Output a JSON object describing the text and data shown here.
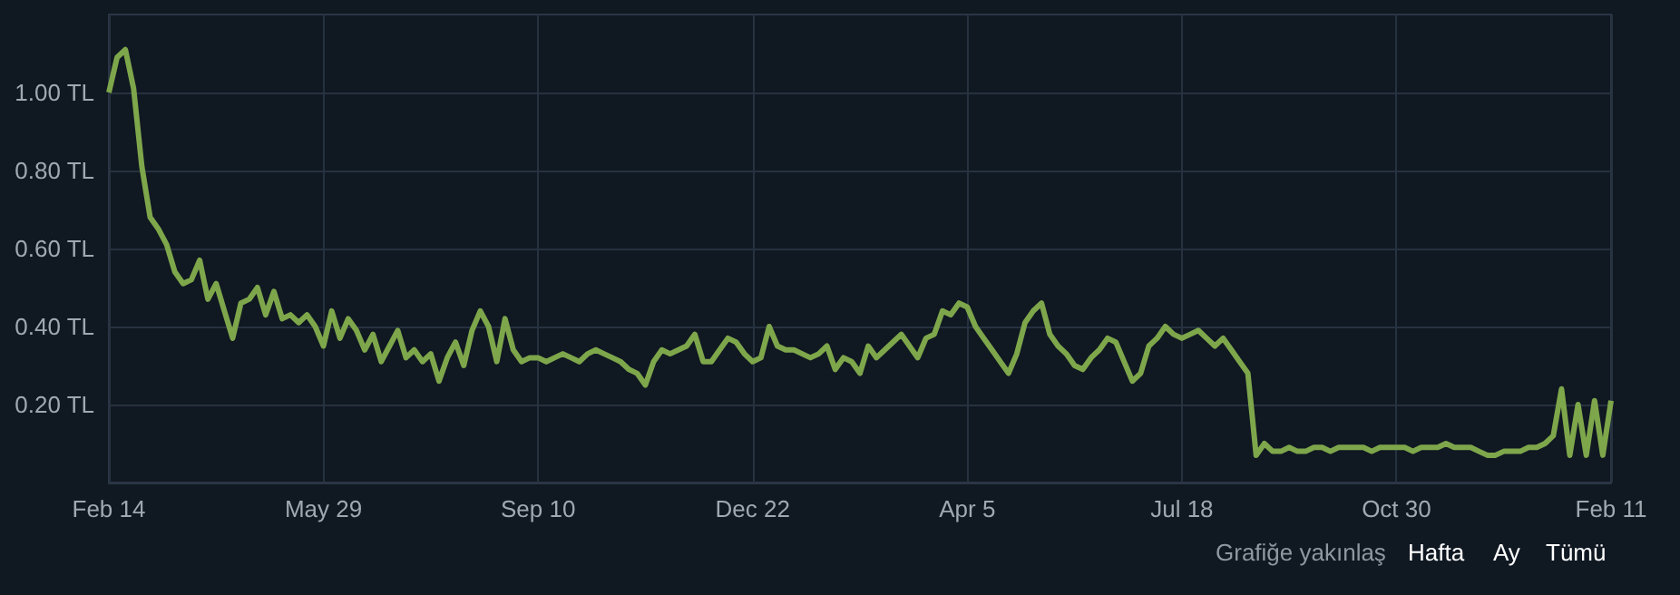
{
  "chart_data": {
    "type": "line",
    "categories": [
      "Feb 14",
      null,
      null,
      null,
      null,
      null,
      null,
      null,
      null,
      null,
      null,
      null,
      null,
      null,
      null,
      null,
      null,
      null,
      null,
      null,
      null,
      null,
      null,
      null,
      null,
      null,
      "May 29",
      null,
      null,
      null,
      null,
      null,
      null,
      null,
      null,
      null,
      null,
      null,
      null,
      null,
      null,
      null,
      null,
      null,
      null,
      null,
      null,
      null,
      null,
      null,
      null,
      null,
      "Sep 10",
      null,
      null,
      null,
      null,
      null,
      null,
      null,
      null,
      null,
      null,
      null,
      null,
      null,
      null,
      null,
      null,
      null,
      null,
      null,
      null,
      null,
      null,
      null,
      null,
      null,
      "Dec 22",
      null,
      null,
      null,
      null,
      null,
      null,
      null,
      null,
      null,
      null,
      null,
      null,
      null,
      null,
      null,
      null,
      null,
      null,
      null,
      null,
      null,
      null,
      null,
      null,
      null,
      "Apr 5",
      null,
      null,
      null,
      null,
      null,
      null,
      null,
      null,
      null,
      null,
      null,
      null,
      null,
      null,
      null,
      null,
      null,
      null,
      null,
      null,
      null,
      null,
      null,
      null,
      null,
      "Jul 18",
      null,
      null,
      null,
      null,
      null,
      null,
      null,
      null,
      null,
      null,
      null,
      null,
      null,
      null,
      null,
      null,
      null,
      null,
      null,
      null,
      null,
      null,
      null,
      null,
      null,
      "Oct 30",
      null,
      null,
      null,
      null,
      null,
      null,
      null,
      null,
      null,
      null,
      null,
      null,
      null,
      null,
      null,
      null,
      null,
      null,
      null,
      null,
      null,
      null,
      null,
      null,
      null,
      "Feb 11"
    ],
    "series": [
      {
        "color": "#7ea64b",
        "values": [
          1.0,
          1.09,
          1.11,
          1.01,
          0.81,
          0.68,
          0.65,
          0.61,
          0.54,
          0.51,
          0.52,
          0.57,
          0.47,
          0.51,
          0.44,
          0.37,
          0.46,
          0.47,
          0.5,
          0.43,
          0.49,
          0.42,
          0.43,
          0.41,
          0.43,
          0.4,
          0.35,
          0.44,
          0.37,
          0.42,
          0.39,
          0.34,
          0.38,
          0.31,
          0.35,
          0.39,
          0.32,
          0.34,
          0.31,
          0.33,
          0.26,
          0.32,
          0.36,
          0.3,
          0.39,
          0.44,
          0.4,
          0.31,
          0.42,
          0.34,
          0.31,
          0.32,
          0.32,
          0.31,
          0.32,
          0.33,
          0.32,
          0.31,
          0.33,
          0.34,
          0.33,
          0.32,
          0.31,
          0.29,
          0.28,
          0.25,
          0.31,
          0.34,
          0.33,
          0.34,
          0.35,
          0.38,
          0.31,
          0.31,
          0.34,
          0.37,
          0.36,
          0.33,
          0.31,
          0.32,
          0.4,
          0.35,
          0.34,
          0.34,
          0.33,
          0.32,
          0.33,
          0.35,
          0.29,
          0.32,
          0.31,
          0.28,
          0.35,
          0.32,
          0.34,
          0.36,
          0.38,
          0.35,
          0.32,
          0.37,
          0.38,
          0.44,
          0.43,
          0.46,
          0.45,
          0.4,
          0.37,
          0.34,
          0.31,
          0.28,
          0.33,
          0.41,
          0.44,
          0.46,
          0.38,
          0.35,
          0.33,
          0.3,
          0.29,
          0.32,
          0.34,
          0.37,
          0.36,
          0.31,
          0.26,
          0.28,
          0.35,
          0.37,
          0.4,
          0.38,
          0.37,
          0.38,
          0.39,
          0.37,
          0.35,
          0.37,
          0.34,
          0.31,
          0.28,
          0.07,
          0.1,
          0.08,
          0.08,
          0.09,
          0.08,
          0.08,
          0.09,
          0.09,
          0.08,
          0.09,
          0.09,
          0.09,
          0.09,
          0.08,
          0.09,
          0.09,
          0.09,
          0.09,
          0.08,
          0.09,
          0.09,
          0.09,
          0.1,
          0.09,
          0.09,
          0.09,
          0.08,
          0.07,
          0.07,
          0.08,
          0.08,
          0.08,
          0.09,
          0.09,
          0.1,
          0.12,
          0.24,
          0.07,
          0.2,
          0.07,
          0.21,
          0.07,
          0.21
        ]
      }
    ],
    "ylim": [
      0,
      1.2
    ],
    "yticks": [
      {
        "value": 0.2,
        "label": "0.20 TL"
      },
      {
        "value": 0.4,
        "label": "0.40 TL"
      },
      {
        "value": 0.6,
        "label": "0.60 TL"
      },
      {
        "value": 0.8,
        "label": "0.80 TL"
      },
      {
        "value": 1.0,
        "label": "1.00 TL"
      }
    ],
    "grid": true,
    "annotations": [
      "Grafiğe yakınlaş",
      "Hafta",
      "Ay",
      "Tümü"
    ]
  }
}
